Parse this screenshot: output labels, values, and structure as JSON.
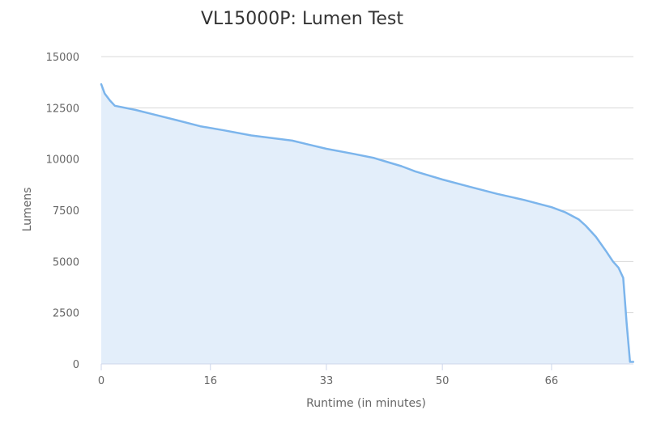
{
  "chart_data": {
    "type": "area",
    "title": "VL15000P: Lumen Test",
    "xlabel": "Runtime (in minutes)",
    "ylabel": "Lumens",
    "xlim": [
      0,
      78
    ],
    "ylim": [
      0,
      15000
    ],
    "x_ticks": [
      0,
      16,
      33,
      50,
      66
    ],
    "y_ticks": [
      0,
      2500,
      5000,
      7500,
      10000,
      12500,
      15000
    ],
    "grid": true,
    "legend": "none",
    "colors": {
      "line": "#7cb5ec",
      "fill": "#e3eefa",
      "grid": "#d8d8d8",
      "axis": "#ccd6eb",
      "title": "#333333",
      "label": "#666666"
    },
    "series": [
      {
        "x": [
          0,
          0.5,
          1.3,
          2,
          5,
          8,
          11,
          14.5,
          18,
          22,
          28,
          33,
          37,
          40,
          42,
          44,
          46,
          48,
          50,
          54,
          58,
          62,
          66,
          68,
          70,
          71,
          72.5,
          74,
          75,
          75.8,
          76.5,
          77,
          77.5
        ],
        "y": [
          13650,
          13200,
          12850,
          12600,
          12400,
          12150,
          11900,
          11600,
          11400,
          11150,
          10900,
          10500,
          10250,
          10050,
          9850,
          9650,
          9400,
          9200,
          9000,
          8650,
          8300,
          8000,
          7650,
          7400,
          7050,
          6750,
          6200,
          5500,
          5000,
          4700,
          4200,
          2000,
          100
        ]
      }
    ]
  }
}
